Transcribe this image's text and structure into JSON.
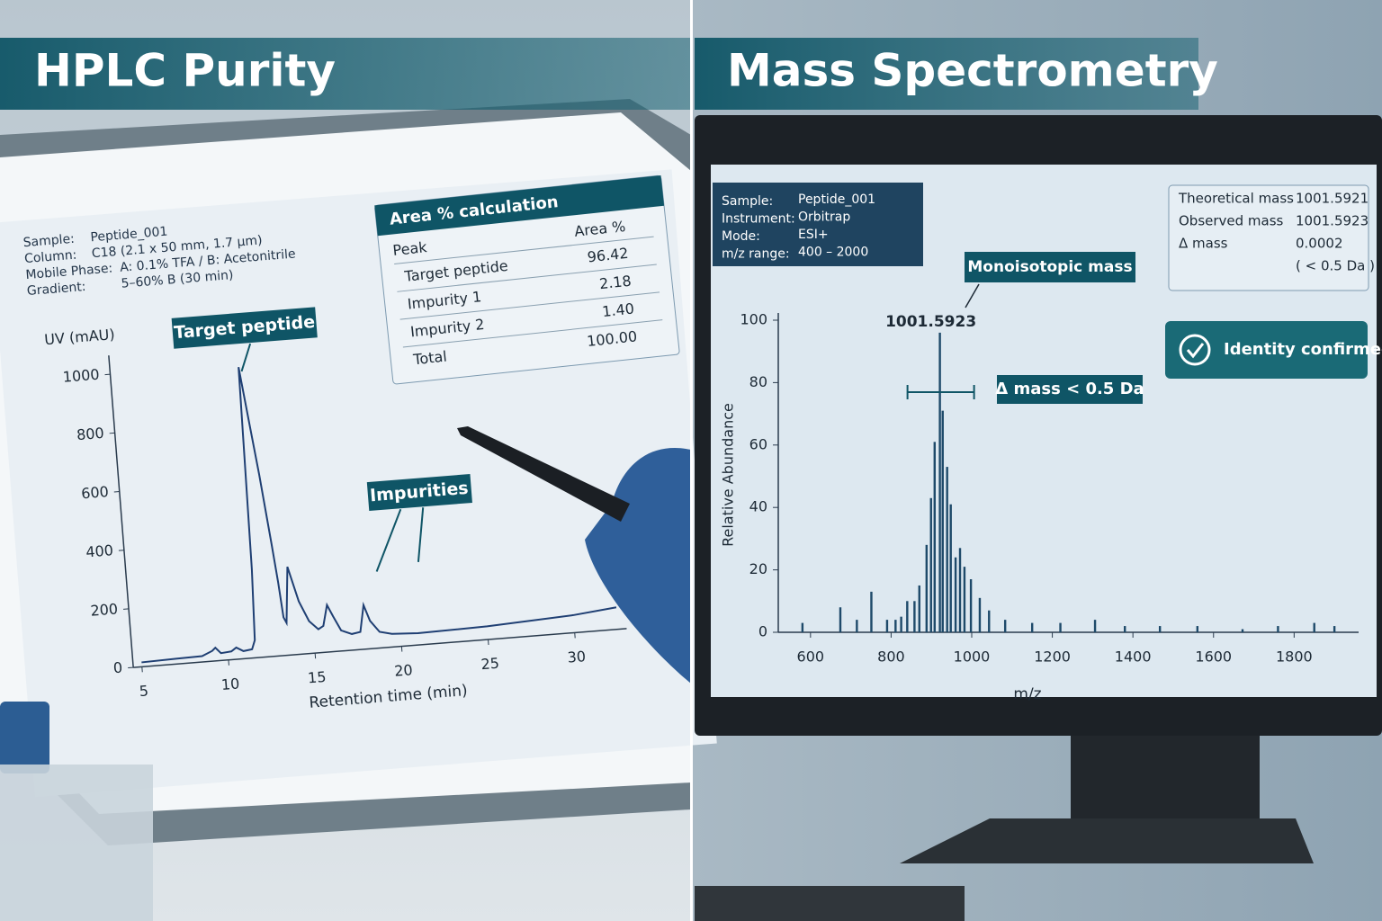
{
  "chart_data": [
    {
      "type": "line",
      "title": "HPLC Purity",
      "x_label": "Retention time (min)",
      "y_label": "UV (mAU)",
      "info": [
        {
          "label": "Sample:",
          "value": "Peptide_001"
        },
        {
          "label": "Column:",
          "value": "C18 (2.1 x 50 mm, 1.7 µm)"
        },
        {
          "label": "Mobile Phase:",
          "value": "A: 0.1% TFA / B: Acetonitrile"
        },
        {
          "label": "Gradient:",
          "value": "5–60% B (30 min)"
        }
      ],
      "annotations": [
        "Target peptide",
        "Impurities"
      ],
      "table": {
        "title": "Area % calculation",
        "header": [
          "Peak",
          "Area %"
        ],
        "rows": [
          [
            "Target peptide",
            "96.42"
          ],
          [
            "Impurity 1",
            "2.18"
          ],
          [
            "Impurity 2",
            "1.40"
          ],
          [
            "Total",
            "100.00"
          ]
        ]
      },
      "x": [
        5,
        7,
        8.5,
        9.1,
        9.3,
        9.6,
        10.2,
        10.5,
        10.9,
        11.4,
        11.6,
        11.75,
        11.9,
        12.2,
        12.6,
        13.0,
        13.2,
        13.35,
        13.5,
        13.8,
        14.3,
        14.8,
        15.3,
        15.6,
        15.9,
        16.2,
        16.6,
        17.2,
        17.7,
        18.0,
        18.3,
        18.8,
        19.5,
        21,
        25,
        30,
        32.5
      ],
      "values": [
        15,
        18,
        20,
        35,
        45,
        25,
        28,
        40,
        26,
        30,
        60,
        300,
        990,
        830,
        620,
        380,
        250,
        130,
        110,
        300,
        180,
        110,
        80,
        90,
        160,
        120,
        70,
        55,
        60,
        150,
        95,
        55,
        45,
        40,
        45,
        60,
        75
      ],
      "color": "#1f3f73",
      "xlim": [
        4.5,
        33
      ],
      "xticks": [
        5,
        10,
        15,
        20,
        25,
        30
      ],
      "ylim": [
        0,
        1040
      ],
      "yticks": [
        0,
        200,
        400,
        600,
        800,
        1000
      ]
    },
    {
      "type": "bar",
      "title": "Mass Spectrometry",
      "x_label": "m/z",
      "y_label": "Relative Abundance",
      "info": [
        {
          "label": "Sample:",
          "value": "Peptide_001"
        },
        {
          "label": "Instrument:",
          "value": "Orbitrap"
        },
        {
          "label": "Mode:",
          "value": "ESI+"
        },
        {
          "label": "m/z range:",
          "value": "400 – 2000"
        }
      ],
      "mass_table": {
        "rows": [
          [
            "Theoretical mass",
            "1001.5921"
          ],
          [
            "Observed mass",
            "1001.5923"
          ],
          [
            "Δ mass",
            "0.0002"
          ]
        ],
        "note": "( < 0.5 Da )"
      },
      "annotations": {
        "callout": "Monoisotopic mass",
        "peak_label": "1001.5923",
        "delta": "Δ mass < 0.5 Da",
        "status": "Identity confirmed"
      },
      "x": [
        580,
        674,
        715,
        751,
        790,
        811,
        825,
        840,
        858,
        870,
        888,
        899,
        908,
        921,
        928,
        939,
        948,
        960,
        971,
        982,
        998,
        1020,
        1043,
        1083,
        1150,
        1220,
        1306,
        1380,
        1467,
        1560,
        1672,
        1760,
        1850,
        1900
      ],
      "values": [
        3,
        8,
        4,
        13,
        4,
        4,
        5,
        10,
        10,
        15,
        28,
        43,
        61,
        96,
        71,
        53,
        41,
        24,
        27,
        21,
        17,
        11,
        7,
        4,
        3,
        3,
        4,
        2,
        2,
        2,
        1,
        2,
        3,
        2
      ],
      "color": "#1e4a6a",
      "xlim": [
        520,
        1960
      ],
      "xticks": [
        600,
        800,
        1000,
        1200,
        1400,
        1600,
        1800
      ],
      "ylim": [
        0,
        100
      ],
      "yticks": [
        0,
        20,
        40,
        60,
        80,
        100
      ]
    }
  ]
}
